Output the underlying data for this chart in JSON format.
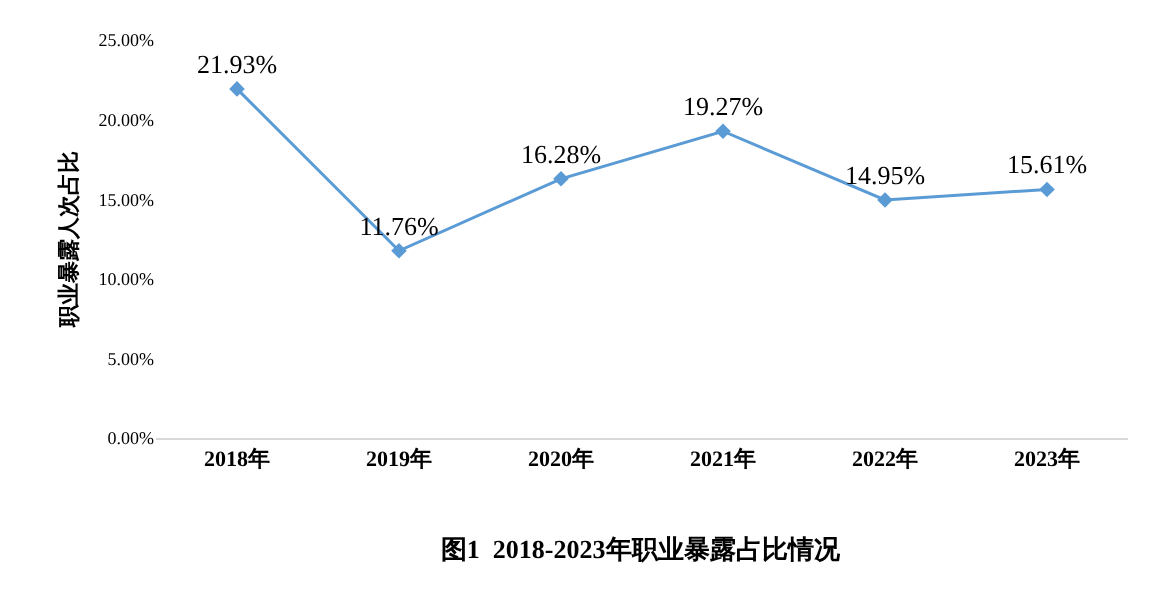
{
  "chart_data": {
    "type": "line",
    "title": "图1  2018-2023年职业暴露占比情况",
    "ylabel": "职业暴露人次占比",
    "categories": [
      "2018年",
      "2019年",
      "2020年",
      "2021年",
      "2022年",
      "2023年"
    ],
    "series": [
      {
        "color": "#5b9bd5",
        "values": [
          21.93,
          11.76,
          16.28,
          19.27,
          14.95,
          15.61
        ],
        "value_labels": [
          "21.93%",
          "11.76%",
          "16.28%",
          "19.27%",
          "14.95%",
          "15.61%"
        ]
      }
    ],
    "ylim": [
      0,
      25
    ],
    "yticks": [
      {
        "value": 0,
        "label": "0.00%"
      },
      {
        "value": 5,
        "label": "5.00%"
      },
      {
        "value": 10,
        "label": "10.00%"
      },
      {
        "value": 15,
        "label": "15.00%"
      },
      {
        "value": 20,
        "label": "20.00%"
      },
      {
        "value": 25,
        "label": "25.00%"
      }
    ],
    "grid": false,
    "legend": false,
    "marker": "diamond",
    "line_style": "solid"
  }
}
